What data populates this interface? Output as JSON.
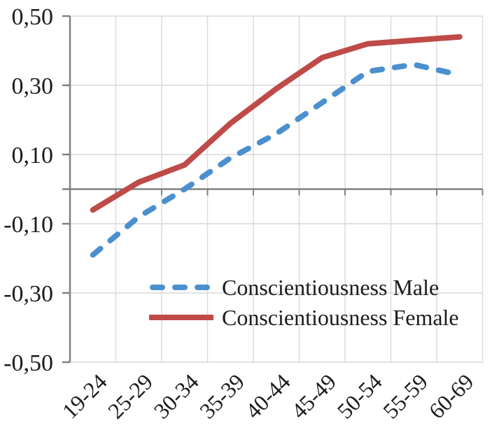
{
  "chart_data": {
    "type": "line",
    "title": "",
    "xlabel": "",
    "ylabel": "",
    "categories": [
      "19-24",
      "25-29",
      "30-34",
      "35-39",
      "40-44",
      "45-49",
      "50-54",
      "55-59",
      "60-69"
    ],
    "series": [
      {
        "name": "Conscientiousness Male",
        "values": [
          -0.19,
          -0.08,
          0.0,
          0.09,
          0.16,
          0.25,
          0.34,
          0.36,
          0.33
        ],
        "color": "#4a90ce",
        "style": "dashed"
      },
      {
        "name": "Conscientiousness Female",
        "values": [
          -0.06,
          0.02,
          0.07,
          0.19,
          0.29,
          0.38,
          0.42,
          0.43,
          0.44
        ],
        "color": "#be4b48",
        "style": "solid"
      }
    ],
    "y_ticks": [
      {
        "label": "0,50",
        "value": 0.5
      },
      {
        "label": "0,30",
        "value": 0.3
      },
      {
        "label": "0,10",
        "value": 0.1
      },
      {
        "label": "-0,10",
        "value": -0.1
      },
      {
        "label": "-0,30",
        "value": -0.3
      },
      {
        "label": "-0,50",
        "value": -0.5
      }
    ],
    "ylim": [
      -0.5,
      0.5
    ],
    "decimal_separator": ",",
    "grid": true,
    "x_tick_rotation": 45,
    "legend_position": "inside-bottom",
    "axis_color": "#808080",
    "gridline_color": "#d9d9d9",
    "text_color": "#1c1c1c"
  }
}
